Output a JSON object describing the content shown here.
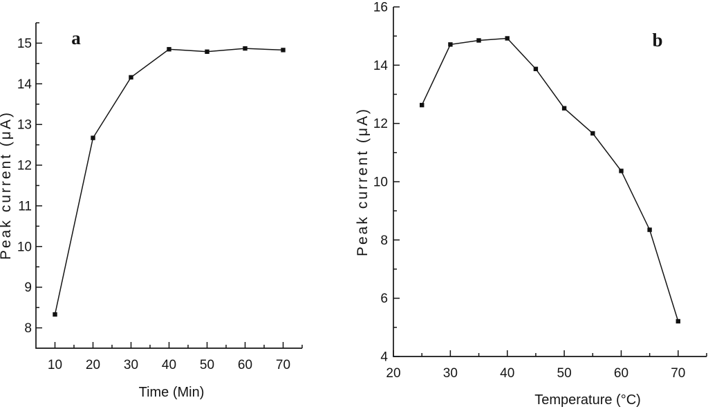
{
  "figure": {
    "background_color": "#ffffff",
    "line_color": "#141414",
    "text_color": "#141414",
    "marker_color": "#111111"
  },
  "chart_data": [
    {
      "id": "panel-a",
      "type": "line",
      "panel_label": "a",
      "title": "",
      "xlabel": "Time (Min)",
      "ylabel": "Peak current (μA)",
      "legend": "none",
      "grid": false,
      "marker": "filled-square",
      "line_color": "#141414",
      "x": [
        10,
        20,
        30,
        40,
        50,
        60,
        70
      ],
      "y": [
        8.33,
        12.67,
        14.16,
        14.85,
        14.79,
        14.87,
        14.83
      ],
      "xlim": [
        5,
        75
      ],
      "ylim": [
        7.5,
        15.5
      ],
      "x_major_ticks": [
        10,
        20,
        30,
        40,
        50,
        60,
        70
      ],
      "x_minor_ticks": [
        15,
        25,
        35,
        45,
        55,
        65,
        75
      ],
      "y_major_ticks": [
        8,
        9,
        10,
        11,
        12,
        13,
        14,
        15
      ],
      "y_minor_ticks": [
        8.5,
        9.5,
        10.5,
        11.5,
        12.5,
        13.5,
        14.5,
        15.5
      ]
    },
    {
      "id": "panel-b",
      "type": "line",
      "panel_label": "b",
      "title": "",
      "xlabel": "Temperature (°C)",
      "ylabel": "Peak current (μA)",
      "legend": "none",
      "grid": false,
      "marker": "filled-square",
      "line_color": "#141414",
      "x": [
        25,
        30,
        35,
        40,
        45,
        50,
        55,
        60,
        65,
        70
      ],
      "y": [
        12.63,
        14.71,
        14.85,
        14.92,
        13.87,
        12.52,
        11.66,
        10.37,
        8.35,
        5.21
      ],
      "xlim": [
        20,
        75
      ],
      "ylim": [
        4,
        16
      ],
      "x_major_ticks": [
        20,
        30,
        40,
        50,
        60,
        70
      ],
      "x_minor_ticks": [
        25,
        35,
        45,
        55,
        65,
        75
      ],
      "y_major_ticks": [
        4,
        6,
        8,
        10,
        12,
        14,
        16
      ],
      "y_minor_ticks": [
        5,
        7,
        9,
        11,
        13,
        15
      ]
    }
  ]
}
